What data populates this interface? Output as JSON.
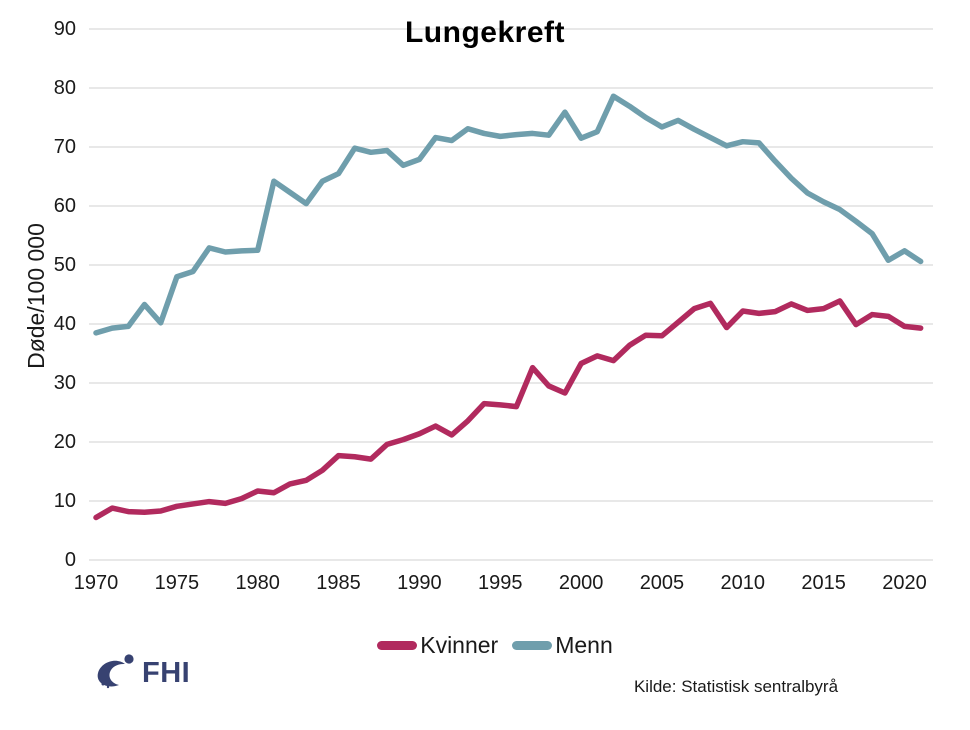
{
  "title": "Lungekreft",
  "source": "Kilde: Statistisk sentralbyrå",
  "logo_text": "FHI",
  "colors": {
    "kvinner": "#b12a5e",
    "menn": "#6f9eac",
    "gridline": "#d9d9d9",
    "logo_navy": "#374271",
    "text": "#1a1a1a"
  },
  "chart_data": {
    "type": "line",
    "title": "Lungekreft",
    "xlabel": "",
    "ylabel": "Døde/100 000",
    "ylim": [
      0,
      90
    ],
    "yticks": [
      0,
      10,
      20,
      30,
      40,
      50,
      60,
      70,
      80,
      90
    ],
    "xticks": [
      1970,
      1975,
      1980,
      1985,
      1990,
      1995,
      2000,
      2005,
      2010,
      2015,
      2020
    ],
    "grid": "horizontal",
    "legend_position": "bottom-center",
    "x": [
      1970,
      1971,
      1972,
      1973,
      1974,
      1975,
      1976,
      1977,
      1978,
      1979,
      1980,
      1981,
      1982,
      1983,
      1984,
      1985,
      1986,
      1987,
      1988,
      1989,
      1990,
      1991,
      1992,
      1993,
      1994,
      1995,
      1996,
      1997,
      1998,
      1999,
      2000,
      2001,
      2002,
      2003,
      2004,
      2005,
      2006,
      2007,
      2008,
      2009,
      2010,
      2011,
      2012,
      2013,
      2014,
      2015,
      2016,
      2017,
      2018,
      2019,
      2020,
      2021
    ],
    "series": [
      {
        "name": "Kvinner",
        "color": "#b12a5e",
        "values": [
          7.2,
          8.8,
          8.2,
          8.1,
          8.3,
          9.1,
          9.5,
          9.9,
          9.6,
          10.4,
          11.7,
          11.4,
          12.9,
          13.5,
          15.2,
          17.7,
          17.5,
          17.1,
          19.6,
          20.4,
          21.4,
          22.7,
          21.2,
          23.6,
          26.5,
          26.3,
          26.0,
          32.6,
          29.5,
          28.3,
          33.3,
          34.6,
          33.8,
          36.4,
          38.1,
          38.0,
          40.3,
          42.6,
          43.5,
          39.4,
          42.2,
          41.8,
          42.1,
          43.4,
          42.3,
          42.6,
          43.9,
          39.9,
          41.6,
          41.3,
          39.6,
          39.3
        ]
      },
      {
        "name": "Menn",
        "color": "#6f9eac",
        "values": [
          38.5,
          39.3,
          39.6,
          43.3,
          40.2,
          48.0,
          48.9,
          52.9,
          52.2,
          52.4,
          52.5,
          64.2,
          62.3,
          60.4,
          64.2,
          65.5,
          69.8,
          69.1,
          69.4,
          66.9,
          67.9,
          71.6,
          71.1,
          73.1,
          72.3,
          71.8,
          72.1,
          72.3,
          72.0,
          75.9,
          71.5,
          72.6,
          78.6,
          76.9,
          75.0,
          73.4,
          74.5,
          73.0,
          71.6,
          70.2,
          70.9,
          70.7,
          67.6,
          64.7,
          62.2,
          60.7,
          59.4,
          57.4,
          55.3,
          50.8,
          52.4,
          50.6
        ]
      }
    ]
  }
}
